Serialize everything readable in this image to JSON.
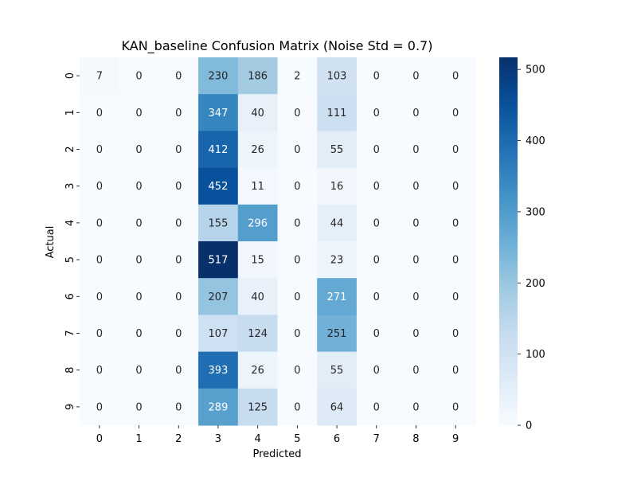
{
  "chart_data": {
    "type": "heatmap",
    "title": "KAN_baseline Confusion Matrix (Noise Std = 0.7)",
    "xlabel": "Predicted",
    "ylabel": "Actual",
    "x_categories": [
      "0",
      "1",
      "2",
      "3",
      "4",
      "5",
      "6",
      "7",
      "8",
      "9"
    ],
    "y_categories": [
      "0",
      "1",
      "2",
      "3",
      "4",
      "5",
      "6",
      "7",
      "8",
      "9"
    ],
    "values": [
      [
        7,
        0,
        0,
        230,
        186,
        2,
        103,
        0,
        0,
        0
      ],
      [
        0,
        0,
        0,
        347,
        40,
        0,
        111,
        0,
        0,
        0
      ],
      [
        0,
        0,
        0,
        412,
        26,
        0,
        55,
        0,
        0,
        0
      ],
      [
        0,
        0,
        0,
        452,
        11,
        0,
        16,
        0,
        0,
        0
      ],
      [
        0,
        0,
        0,
        155,
        296,
        0,
        44,
        0,
        0,
        0
      ],
      [
        0,
        0,
        0,
        517,
        15,
        0,
        23,
        0,
        0,
        0
      ],
      [
        0,
        0,
        0,
        207,
        40,
        0,
        271,
        0,
        0,
        0
      ],
      [
        0,
        0,
        0,
        107,
        124,
        0,
        251,
        0,
        0,
        0
      ],
      [
        0,
        0,
        0,
        393,
        26,
        0,
        55,
        0,
        0,
        0
      ],
      [
        0,
        0,
        0,
        289,
        125,
        0,
        64,
        0,
        0,
        0
      ]
    ],
    "colormap": "Blues",
    "color_range": [
      0,
      517
    ],
    "colorbar_ticks": [
      0,
      100,
      200,
      300,
      400,
      500
    ],
    "annotations": "cell counts",
    "grid": false
  }
}
